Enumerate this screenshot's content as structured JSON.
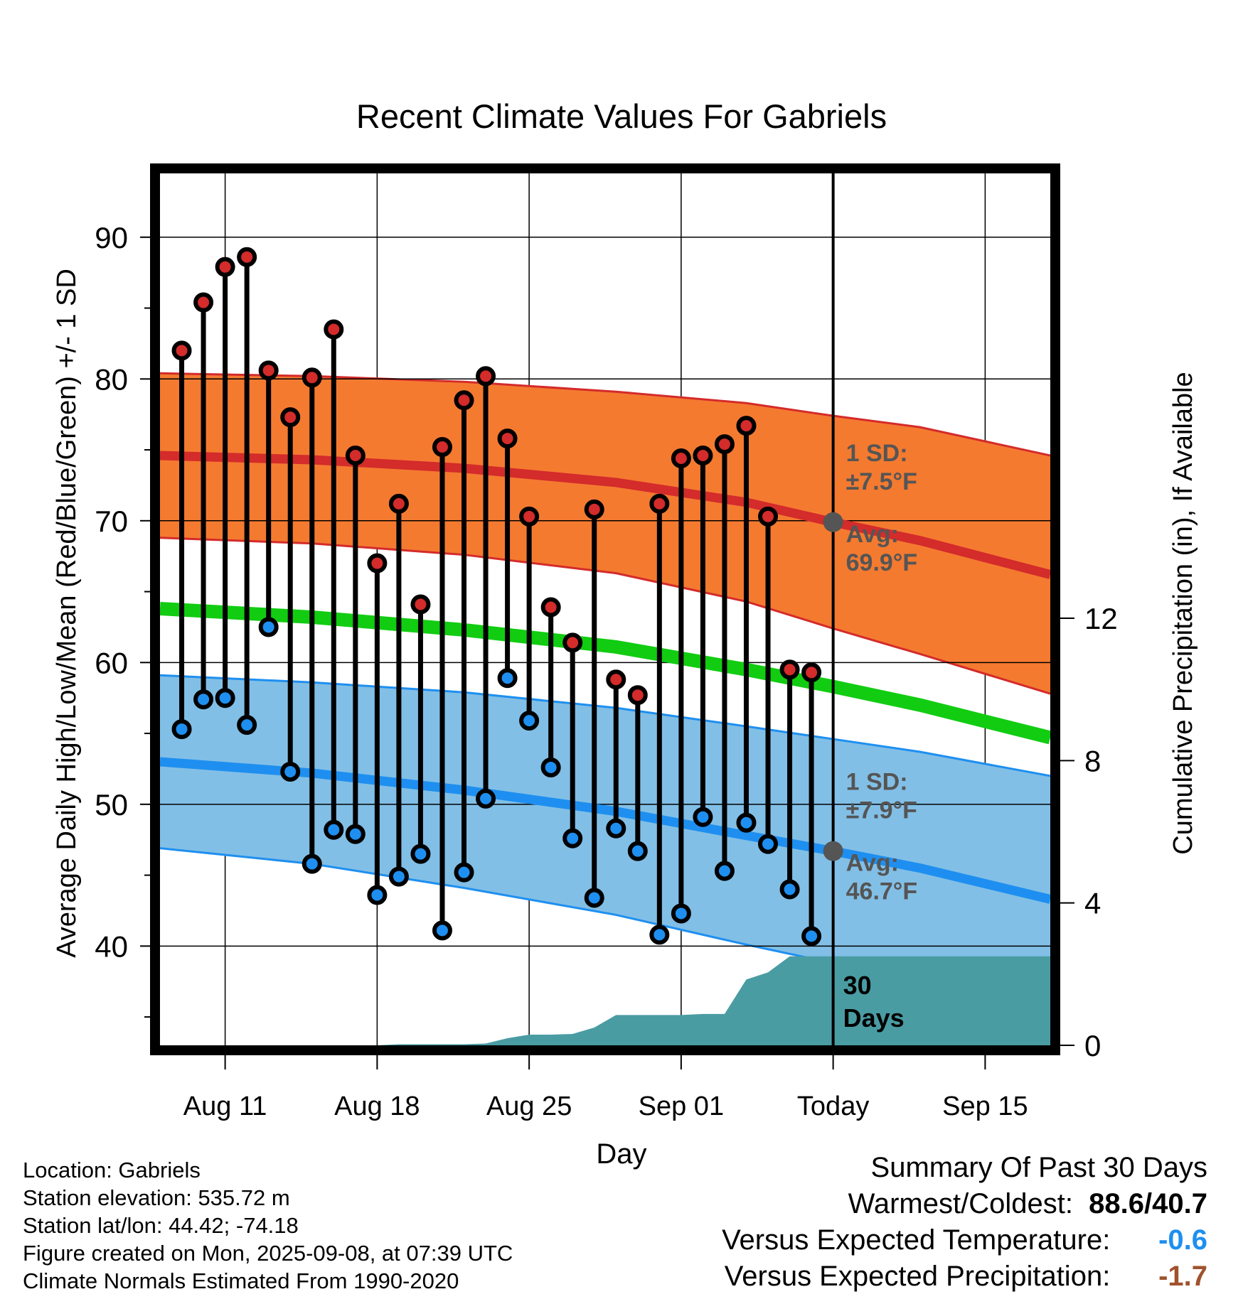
{
  "chart_data": {
    "type": "line",
    "title": "Recent Climate Values For Gabriels",
    "xlabel": "Day",
    "ylabel": "Average Daily High/Low/Mean (Red/Blue/Green) +/- 1 SD",
    "y2label": "Cumulative Precipitation (in), If Available",
    "ylim": [
      33,
      94.5
    ],
    "y2lim": [
      0,
      24.5
    ],
    "xlim": [
      "2025-08-08",
      "2025-09-18"
    ],
    "yticks": [
      40,
      50,
      60,
      70,
      80,
      90
    ],
    "y2ticks": [
      0,
      4,
      8,
      12
    ],
    "xticks": [
      {
        "date": "2025-08-11",
        "label": "Aug 11"
      },
      {
        "date": "2025-08-18",
        "label": "Aug 18"
      },
      {
        "date": "2025-08-25",
        "label": "Aug 25"
      },
      {
        "date": "2025-09-01",
        "label": "Sep 01"
      },
      {
        "date": "2025-09-08",
        "label": "Today"
      },
      {
        "date": "2025-09-15",
        "label": "Sep 15"
      }
    ],
    "today": "2025-09-08",
    "grid": true,
    "colors": {
      "high_band": "#f47a30",
      "high_line": "#d42b2b",
      "low_band": "#82bfe6",
      "low_line": "#1e8ff0",
      "mean_line": "#12cc12",
      "precip": "#4a9ca3",
      "high_marker": "#d42b2b",
      "low_marker": "#1e8ff0",
      "avg_marker": "#555555",
      "annotation": "#555555"
    },
    "normals": {
      "dates": [
        "2025-08-08",
        "2025-08-15",
        "2025-08-22",
        "2025-08-29",
        "2025-09-04",
        "2025-09-08",
        "2025-09-12",
        "2025-09-18"
      ],
      "high_avg": [
        74.6,
        74.3,
        73.7,
        72.7,
        71.3,
        69.9,
        68.6,
        66.2
      ],
      "high_sd": [
        5.8,
        5.9,
        6.1,
        6.4,
        7.0,
        7.5,
        8.0,
        8.4
      ],
      "low_avg": [
        53.0,
        52.2,
        51.0,
        49.5,
        47.8,
        46.7,
        45.5,
        43.3
      ],
      "low_sd": [
        6.1,
        6.4,
        6.9,
        7.3,
        7.7,
        7.9,
        8.2,
        8.7
      ],
      "mean": [
        63.8,
        63.2,
        62.3,
        61.1,
        59.5,
        58.3,
        57.0,
        54.7
      ]
    },
    "series": [
      {
        "name": "High",
        "values": [
          82.0,
          85.4,
          87.9,
          88.6,
          80.6,
          77.3,
          80.1,
          83.5,
          74.6,
          67.0,
          71.2,
          64.1,
          75.2,
          78.5,
          80.2,
          75.8,
          70.3,
          63.9,
          61.4,
          70.8,
          58.8,
          57.7,
          71.2,
          74.4,
          74.6,
          75.4,
          76.7,
          70.3,
          59.5,
          59.3
        ]
      },
      {
        "name": "Low",
        "values": [
          55.3,
          57.4,
          57.5,
          55.6,
          62.5,
          52.3,
          45.8,
          48.2,
          47.9,
          43.6,
          44.9,
          46.5,
          41.1,
          45.2,
          50.4,
          58.9,
          55.9,
          52.6,
          47.6,
          43.4,
          48.3,
          46.7,
          40.8,
          42.3,
          49.1,
          45.3,
          48.7,
          47.2,
          44.0,
          40.7
        ]
      }
    ],
    "obs_start": "2025-08-09",
    "precip": {
      "dates": [
        "2025-08-09",
        "2025-08-18",
        "2025-08-19",
        "2025-08-22",
        "2025-08-23",
        "2025-08-24",
        "2025-08-25",
        "2025-08-26",
        "2025-08-27",
        "2025-08-28",
        "2025-08-29",
        "2025-08-30",
        "2025-08-31",
        "2025-09-01",
        "2025-09-02",
        "2025-09-03",
        "2025-09-04",
        "2025-09-05",
        "2025-09-06",
        "2025-09-07",
        "2025-09-18"
      ],
      "values": [
        0.0,
        0.0,
        0.03,
        0.03,
        0.05,
        0.2,
        0.3,
        0.3,
        0.32,
        0.5,
        0.85,
        0.85,
        0.85,
        0.85,
        0.88,
        0.88,
        1.85,
        2.05,
        2.5,
        2.5,
        2.5
      ]
    },
    "annotations": [
      {
        "sd_label": "1 SD:",
        "sd_value": "±7.5°F",
        "avg_label": "Avg:",
        "avg_value": "69.9°F",
        "avg": 69.9
      },
      {
        "sd_label": "1 SD:",
        "sd_value": "±7.9°F",
        "avg_label": "Avg:",
        "avg_value": "46.7°F",
        "avg": 46.7
      }
    ],
    "today_box": [
      "30",
      "Days"
    ]
  },
  "info": {
    "location": "Location: Gabriels",
    "elevation": "Station elevation: 535.72 m",
    "latlon": "Station lat/lon: 44.42; -74.18",
    "created": "Figure created on Mon, 2025-09-08, at 07:39 UTC",
    "normals": "Climate Normals Estimated From 1990-2020"
  },
  "summary": {
    "title": "Summary Of Past 30 Days",
    "warmest_label": "Warmest/Coldest:",
    "warmest_value": "88.6/40.7",
    "temp_label": "Versus Expected Temperature:",
    "temp_value": "-0.6",
    "temp_color": "#1e8ff0",
    "precip_label": "Versus Expected Precipitation:",
    "precip_value": "-1.7",
    "precip_color": "#a0522d"
  }
}
